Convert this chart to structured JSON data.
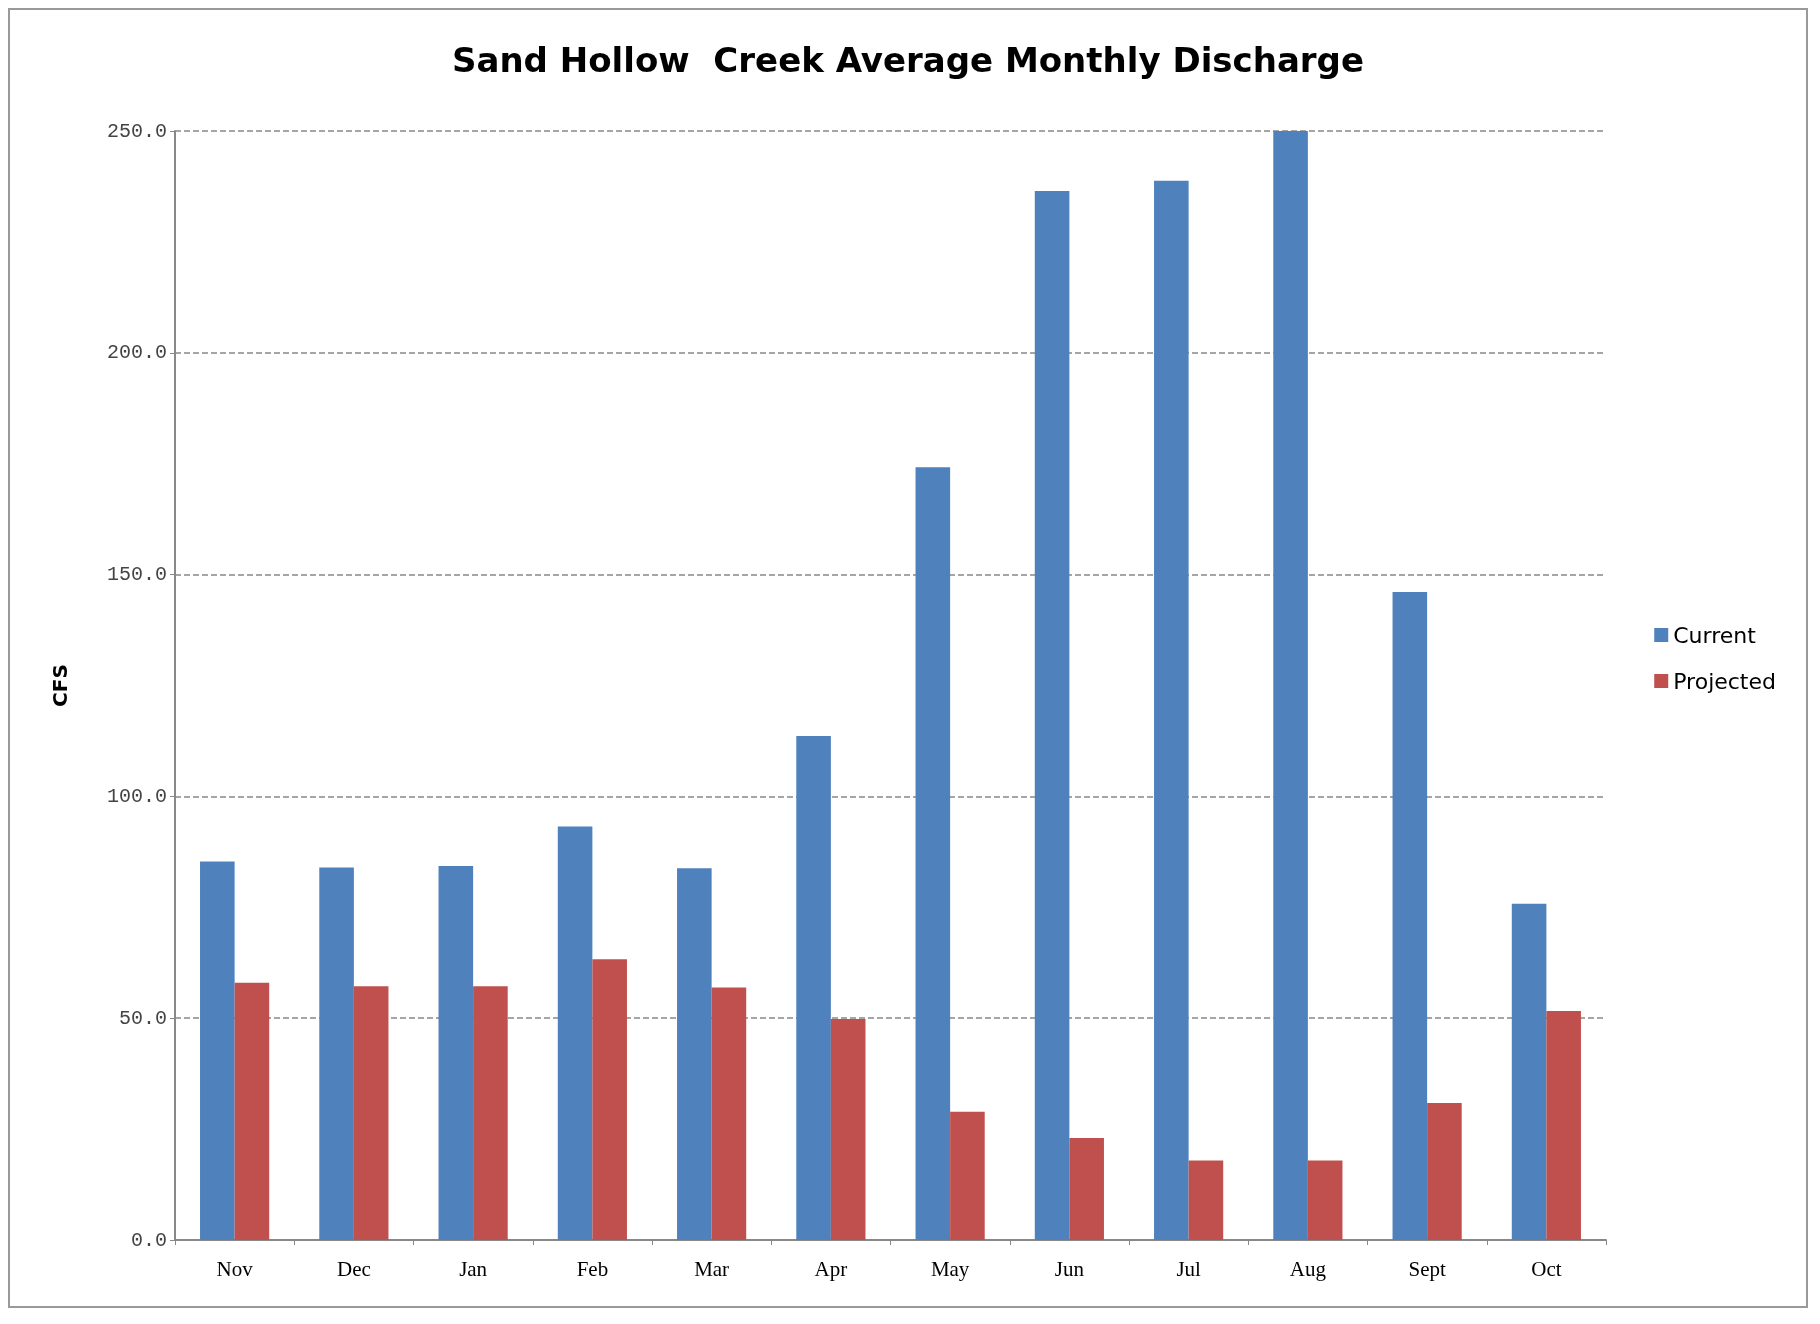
{
  "chart_data": {
    "type": "bar",
    "title": "Sand Hollow  Creek Average Monthly Discharge",
    "ylabel": "CFS",
    "categories": [
      "Nov",
      "Dec",
      "Jan",
      "Feb",
      "Mar",
      "Apr",
      "May",
      "Jun",
      "Jul",
      "Aug",
      "Sept",
      "Oct"
    ],
    "series": [
      {
        "name": "Current",
        "color": "#4f81bd",
        "values": [
          85.3,
          84,
          84.3,
          93.2,
          83.8,
          113.6,
          174.2,
          236.5,
          238.8,
          250,
          146.1,
          75.8
        ]
      },
      {
        "name": "Projected",
        "color": "#c0504d",
        "values": [
          58,
          57.2,
          57.2,
          63.3,
          56.9,
          49.8,
          28.9,
          23,
          17.9,
          17.9,
          30.9,
          51.6
        ]
      }
    ],
    "ylim": [
      0,
      250
    ],
    "yticks": [
      {
        "value": 0,
        "label": "0.0"
      },
      {
        "value": 50,
        "label": "50.0"
      },
      {
        "value": 100,
        "label": "100.0"
      },
      {
        "value": 150,
        "label": "150.0"
      },
      {
        "value": 200,
        "label": "200.0"
      },
      {
        "value": 250,
        "label": "250.0"
      }
    ],
    "grid": "y",
    "legend": "right"
  }
}
